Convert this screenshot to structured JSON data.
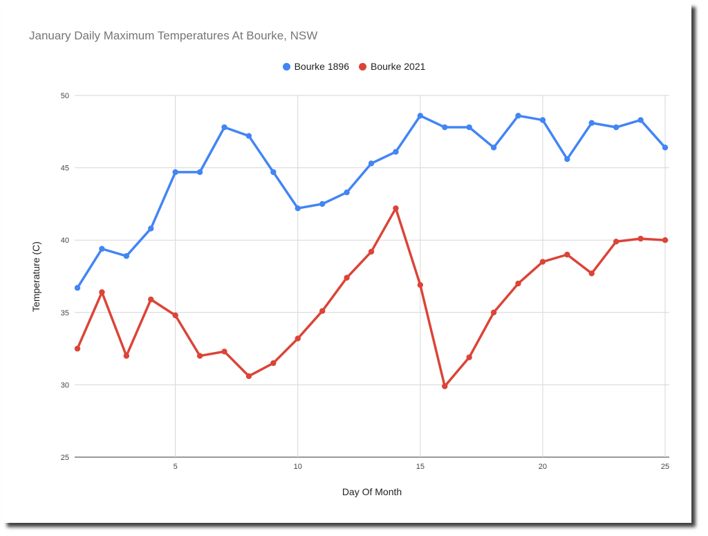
{
  "chart_data": {
    "type": "line",
    "title": "January Daily Maximum Temperatures At Bourke, NSW",
    "xlabel": "Day Of Month",
    "ylabel": "Temperature (C)",
    "xlim": [
      1,
      25
    ],
    "ylim": [
      25,
      50
    ],
    "x_ticks": [
      5,
      10,
      15,
      20,
      25
    ],
    "y_ticks": [
      25,
      30,
      35,
      40,
      45,
      50
    ],
    "grid": true,
    "legend_position": "top",
    "x": [
      1,
      2,
      3,
      4,
      5,
      6,
      7,
      8,
      9,
      10,
      11,
      12,
      13,
      14,
      15,
      16,
      17,
      18,
      19,
      20,
      21,
      22,
      23,
      24,
      25
    ],
    "series": [
      {
        "name": "Bourke 1896",
        "color": "#4285f4",
        "values": [
          36.7,
          39.4,
          38.9,
          40.8,
          44.7,
          44.7,
          47.8,
          47.2,
          44.7,
          42.2,
          42.5,
          43.3,
          45.3,
          46.1,
          48.6,
          47.8,
          47.8,
          46.4,
          48.6,
          48.3,
          45.6,
          48.1,
          47.8,
          48.3,
          46.4
        ]
      },
      {
        "name": "Bourke 2021",
        "color": "#db4437",
        "values": [
          32.5,
          36.4,
          32.0,
          35.9,
          34.8,
          32.0,
          32.3,
          30.6,
          31.5,
          33.2,
          35.1,
          37.4,
          39.2,
          42.2,
          36.9,
          29.9,
          31.9,
          35.0,
          37.0,
          38.5,
          39.0,
          37.7,
          39.9,
          40.1,
          40.0
        ]
      }
    ]
  }
}
